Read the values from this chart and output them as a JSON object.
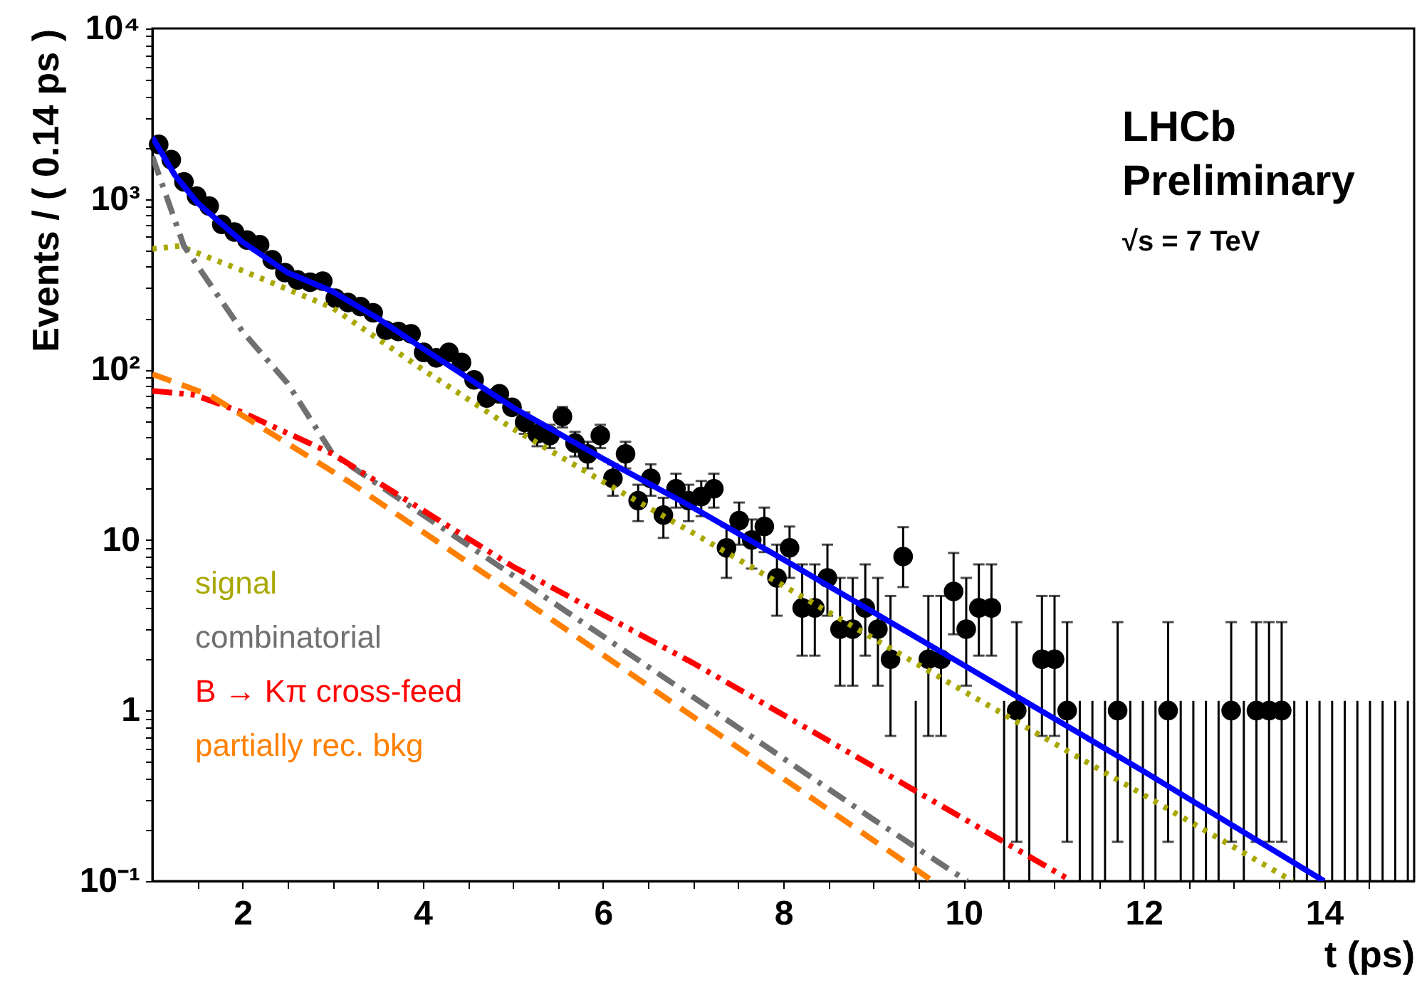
{
  "chart_data": {
    "type": "scatter",
    "xlabel": "t (ps)",
    "ylabel": "Events / ( 0.14 ps )",
    "log": "y",
    "grid": false,
    "legend": "bottom left",
    "xlim": [
      1,
      15
    ],
    "xticks": [
      {
        "value": 1.5,
        "label": null
      },
      2,
      {
        "value": 2.5,
        "label": null
      },
      {
        "value": 3,
        "label": null
      },
      {
        "value": 3.5,
        "label": null
      },
      4,
      {
        "value": 4.5,
        "label": null
      },
      {
        "value": 5,
        "label": null
      },
      {
        "value": 5.5,
        "label": null
      },
      6,
      {
        "value": 6.5,
        "label": null
      },
      {
        "value": 7,
        "label": null
      },
      {
        "value": 7.5,
        "label": null
      },
      8,
      {
        "value": 8.5,
        "label": null
      },
      {
        "value": 9,
        "label": null
      },
      {
        "value": 9.5,
        "label": null
      },
      10,
      {
        "value": 10.5,
        "label": null
      },
      {
        "value": 11,
        "label": null
      },
      {
        "value": 11.5,
        "label": null
      },
      12,
      {
        "value": 12.5,
        "label": null
      },
      {
        "value": 13,
        "label": null
      },
      {
        "value": 13.5,
        "label": null
      },
      14,
      {
        "value": 14.5,
        "label": null
      }
    ],
    "ylim": [
      0.1,
      10000
    ],
    "yticks": [
      {
        "value": 0.1,
        "label": "10⁻¹"
      },
      {
        "value": 0.2,
        "label": null
      },
      {
        "value": 0.3,
        "label": null
      },
      {
        "value": 0.4,
        "label": null
      },
      {
        "value": 0.5,
        "label": null
      },
      {
        "value": 0.6,
        "label": null
      },
      {
        "value": 0.7,
        "label": null
      },
      {
        "value": 0.8,
        "label": null
      },
      {
        "value": 0.9,
        "label": null
      },
      {
        "value": 1,
        "label": "1"
      },
      {
        "value": 2,
        "label": null
      },
      {
        "value": 3,
        "label": null
      },
      {
        "value": 4,
        "label": null
      },
      {
        "value": 5,
        "label": null
      },
      {
        "value": 6,
        "label": null
      },
      {
        "value": 7,
        "label": null
      },
      {
        "value": 8,
        "label": null
      },
      {
        "value": 9,
        "label": null
      },
      {
        "value": 10,
        "label": "10"
      },
      {
        "value": 20,
        "label": null
      },
      {
        "value": 30,
        "label": null
      },
      {
        "value": 40,
        "label": null
      },
      {
        "value": 50,
        "label": null
      },
      {
        "value": 60,
        "label": null
      },
      {
        "value": 70,
        "label": null
      },
      {
        "value": 80,
        "label": null
      },
      {
        "value": 90,
        "label": null
      },
      {
        "value": 100,
        "label": "10²"
      },
      {
        "value": 200,
        "label": null
      },
      {
        "value": 300,
        "label": null
      },
      {
        "value": 400,
        "label": null
      },
      {
        "value": 500,
        "label": null
      },
      {
        "value": 600,
        "label": null
      },
      {
        "value": 700,
        "label": null
      },
      {
        "value": 800,
        "label": null
      },
      {
        "value": 900,
        "label": null
      },
      {
        "value": 1000,
        "label": "10³"
      },
      {
        "value": 2000,
        "label": null
      },
      {
        "value": 3000,
        "label": null
      },
      {
        "value": 4000,
        "label": null
      },
      {
        "value": 5000,
        "label": null
      },
      {
        "value": 6000,
        "label": null
      },
      {
        "value": 7000,
        "label": null
      },
      {
        "value": 8000,
        "label": null
      },
      {
        "value": 9000,
        "label": null
      },
      {
        "value": 10000,
        "label": "10⁴"
      }
    ],
    "annotations": [
      "LHCb",
      "Preliminary",
      "√s = 7 TeV"
    ],
    "series": [
      {
        "color": "#000000",
        "marker": "circle",
        "x": [
          1.07,
          1.21,
          1.35,
          1.49,
          1.63,
          1.77,
          1.91,
          2.05,
          2.19,
          2.33,
          2.47,
          2.61,
          2.75,
          2.89,
          3.03,
          3.17,
          3.31,
          3.45,
          3.59,
          3.73,
          3.87,
          4.01,
          4.15,
          4.29,
          4.43,
          4.57,
          4.71,
          4.85,
          4.99,
          5.13,
          5.27,
          5.41,
          5.55,
          5.69,
          5.83,
          5.97,
          6.11,
          6.25,
          6.39,
          6.53,
          6.67,
          6.81,
          6.95,
          7.09,
          7.23,
          7.37,
          7.51,
          7.65,
          7.79,
          7.93,
          8.07,
          8.21,
          8.35,
          8.49,
          8.63,
          8.77,
          8.91,
          9.05,
          9.19,
          9.33,
          9.47,
          9.61,
          9.75,
          9.89,
          10.03,
          10.17,
          10.31,
          10.45,
          10.59,
          10.73,
          10.87,
          11.01,
          11.15,
          11.29,
          11.43,
          11.57,
          11.71,
          11.85,
          11.99,
          12.13,
          12.27,
          12.41,
          12.55,
          12.69,
          12.83,
          12.97,
          13.11,
          13.25,
          13.39,
          13.53
        ],
        "values": [
          2090,
          1700,
          1260,
          1040,
          910,
          710,
          640,
          575,
          540,
          440,
          370,
          335,
          325,
          330,
          262,
          247,
          234,
          215,
          170,
          167,
          162,
          126,
          117,
          126,
          110,
          87,
          68,
          72,
          60,
          49,
          42,
          41,
          53,
          37,
          32,
          41,
          23,
          32,
          17,
          23,
          14,
          20,
          17,
          18,
          20,
          9,
          13,
          10,
          12,
          6,
          9,
          4,
          4,
          6,
          3,
          3,
          4,
          3,
          2,
          8,
          null,
          2,
          2,
          5,
          3,
          4,
          4,
          null,
          1,
          null,
          2,
          2,
          1,
          null,
          null,
          null,
          1,
          null,
          null,
          null,
          1,
          null,
          null,
          null,
          null,
          1,
          null,
          1,
          1,
          1
        ],
        "errors": [
          null,
          null,
          null,
          null,
          null,
          null,
          null,
          null,
          null,
          null,
          null,
          null,
          null,
          null,
          null,
          null,
          null,
          null,
          null,
          null,
          null,
          null,
          null,
          null,
          null,
          null,
          null,
          null,
          null,
          7,
          6.5,
          6.4,
          7.3,
          6.1,
          5.7,
          6.4,
          4.8,
          5.7,
          4.1,
          4.8,
          3.7,
          4.5,
          4.1,
          4.2,
          4.5,
          3,
          3.6,
          3.2,
          3.5,
          [
            3.6,
            9.4
          ],
          3,
          [
            2.1,
            7.2
          ],
          [
            2.1,
            7.2
          ],
          [
            3.6,
            9.4
          ],
          [
            1.4,
            6
          ],
          [
            1.4,
            6
          ],
          [
            2.1,
            7.2
          ],
          [
            1.4,
            6
          ],
          [
            0.71,
            4.7
          ],
          [
            5.3,
            11.9
          ],
          null,
          [
            0.71,
            4.7
          ],
          [
            0.71,
            4.7
          ],
          [
            2.8,
            8.4
          ],
          [
            1.4,
            6
          ],
          [
            2.1,
            7.2
          ],
          [
            2.1,
            7.2
          ],
          null,
          [
            0.17,
            3.3
          ],
          null,
          [
            0.71,
            4.7
          ],
          [
            0.71,
            4.7
          ],
          [
            0.17,
            3.3
          ],
          null,
          null,
          null,
          [
            0.17,
            3.3
          ],
          null,
          null,
          null,
          [
            0.17,
            3.3
          ],
          null,
          null,
          null,
          null,
          [
            0.17,
            3.3
          ],
          null,
          [
            0.17,
            3.3
          ],
          [
            0.17,
            3.3
          ],
          [
            0.17,
            3.3
          ]
        ]
      },
      {
        "type": "bar",
        "color": "#000000",
        "x": [
          9.47,
          10.45,
          10.73,
          11.29,
          11.43,
          11.57,
          11.85,
          11.99,
          12.13,
          12.41,
          12.55,
          12.69,
          12.83,
          13.11,
          13.67,
          13.81,
          13.95,
          14.09,
          14.23,
          14.37,
          14.51,
          14.65,
          14.79,
          14.93
        ],
        "base": [
          0.1,
          0.1,
          0.1,
          0.1,
          0.1,
          0.1,
          0.1,
          0.1,
          0.1,
          0.1,
          0.1,
          0.1,
          0.1,
          0.1,
          0.1,
          0.1,
          0.1,
          0.1,
          0.1,
          0.1,
          0.1,
          0.1,
          0.1,
          0.1
        ],
        "values": [
          1.04,
          1.04,
          1.04,
          1.04,
          1.04,
          1.04,
          1.04,
          1.04,
          1.04,
          1.04,
          1.04,
          1.04,
          1.04,
          1.04,
          1.04,
          1.04,
          1.04,
          1.04,
          1.04,
          1.04,
          1.04,
          1.04,
          1.04,
          1.04
        ]
      },
      {
        "type": "line",
        "color": "#0000ff",
        "line_style": "solid",
        "x": [
          1,
          1.25,
          1.5,
          2,
          2.5,
          3,
          3.5,
          4,
          5,
          6,
          7,
          8,
          10,
          12,
          14
        ],
        "values": [
          2300,
          1380,
          950,
          560,
          370,
          287,
          200,
          133,
          60,
          30,
          15.5,
          7.7,
          1.85,
          0.44,
          0.1
        ]
      },
      {
        "type": "line",
        "name": "signal",
        "color": "#a8a800",
        "line_style": "dotted",
        "x": [
          1,
          1.3,
          2,
          3,
          4,
          5,
          6,
          7,
          8,
          10,
          12,
          13.65
        ],
        "values": [
          510,
          530,
          380,
          230,
          100,
          45,
          22,
          11,
          5.4,
          1.3,
          0.32,
          0.1
        ]
      },
      {
        "type": "line",
        "name": "combinatorial",
        "color": "#707070",
        "line_style": "dashdot",
        "x": [
          1,
          1.35,
          2,
          2.5,
          3,
          5,
          7,
          9,
          10.04
        ],
        "values": [
          1780,
          530,
          167,
          83,
          32,
          6.2,
          1.2,
          0.23,
          0.1
        ]
      },
      {
        "type": "line",
        "name": "B → Kπ cross-feed",
        "color": "#ff0000",
        "line_style": "dashdotdot",
        "x": [
          1,
          1.47,
          2,
          3,
          5,
          7,
          9,
          11.2
        ],
        "values": [
          75,
          71,
          56,
          32,
          7,
          1.9,
          0.47,
          0.1
        ]
      },
      {
        "type": "line",
        "name": "partially rec. bkg",
        "color": "#ff8000",
        "line_style": "dashed",
        "x": [
          1,
          1.63,
          3.18,
          5,
          7,
          9.66
        ],
        "values": [
          94,
          71,
          22,
          4.9,
          0.92,
          0.1
        ]
      }
    ]
  }
}
